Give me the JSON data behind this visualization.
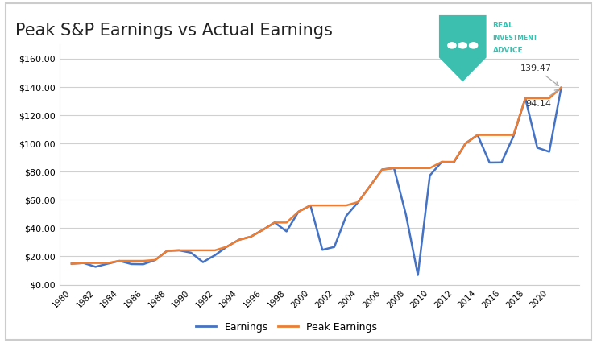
{
  "title": "Peak S&P Earnings vs Actual Earnings",
  "title_fontsize": 15,
  "background_color": "#ffffff",
  "grid_color": "#d0d0d0",
  "ylim": [
    0,
    170
  ],
  "yticks": [
    0,
    20,
    40,
    60,
    80,
    100,
    120,
    140,
    160
  ],
  "years": [
    1980,
    1981,
    1982,
    1983,
    1984,
    1985,
    1986,
    1987,
    1988,
    1989,
    1990,
    1991,
    1992,
    1993,
    1994,
    1995,
    1996,
    1997,
    1998,
    1999,
    2000,
    2001,
    2002,
    2003,
    2004,
    2005,
    2006,
    2007,
    2008,
    2009,
    2010,
    2011,
    2012,
    2013,
    2014,
    2015,
    2016,
    2017,
    2018,
    2019,
    2020,
    2021
  ],
  "earnings": [
    14.86,
    15.36,
    12.64,
    14.82,
    16.84,
    14.61,
    14.48,
    17.5,
    23.98,
    24.32,
    22.65,
    15.97,
    20.87,
    26.9,
    31.75,
    33.96,
    38.73,
    44.01,
    37.71,
    51.68,
    56.13,
    24.69,
    26.74,
    48.74,
    58.55,
    69.93,
    81.51,
    82.54,
    49.51,
    6.86,
    77.35,
    86.95,
    86.51,
    100.1,
    106.03,
    86.44,
    86.54,
    105.0,
    132.0,
    97.0,
    94.14,
    139.47
  ],
  "peak_earnings": [
    14.86,
    15.36,
    15.36,
    15.36,
    16.84,
    16.84,
    16.84,
    17.5,
    23.98,
    24.32,
    24.32,
    24.32,
    24.32,
    26.9,
    31.75,
    33.96,
    38.73,
    44.01,
    44.01,
    51.68,
    56.13,
    56.13,
    56.13,
    56.13,
    58.55,
    69.93,
    81.51,
    82.54,
    82.54,
    82.54,
    82.54,
    86.95,
    86.95,
    100.1,
    106.03,
    106.03,
    106.03,
    106.03,
    132.0,
    132.0,
    132.0,
    139.47
  ],
  "earnings_color": "#4472c4",
  "peak_color": "#ed7d31",
  "annotation_139": "139.47",
  "annotation_94": "94.14",
  "legend_labels": [
    "Earnings",
    "Peak Earnings"
  ],
  "xtick_labels": [
    "1980",
    "1982",
    "1984",
    "1986",
    "1988",
    "1990",
    "1992",
    "1994",
    "1996",
    "1998",
    "2000",
    "2002",
    "2004",
    "2006",
    "2008",
    "2010",
    "2012",
    "2014",
    "2016",
    "2018",
    "2020"
  ],
  "shield_color": "#3dbfb0",
  "logo_text_color": "#3dbfb0",
  "border_color": "#cccccc"
}
